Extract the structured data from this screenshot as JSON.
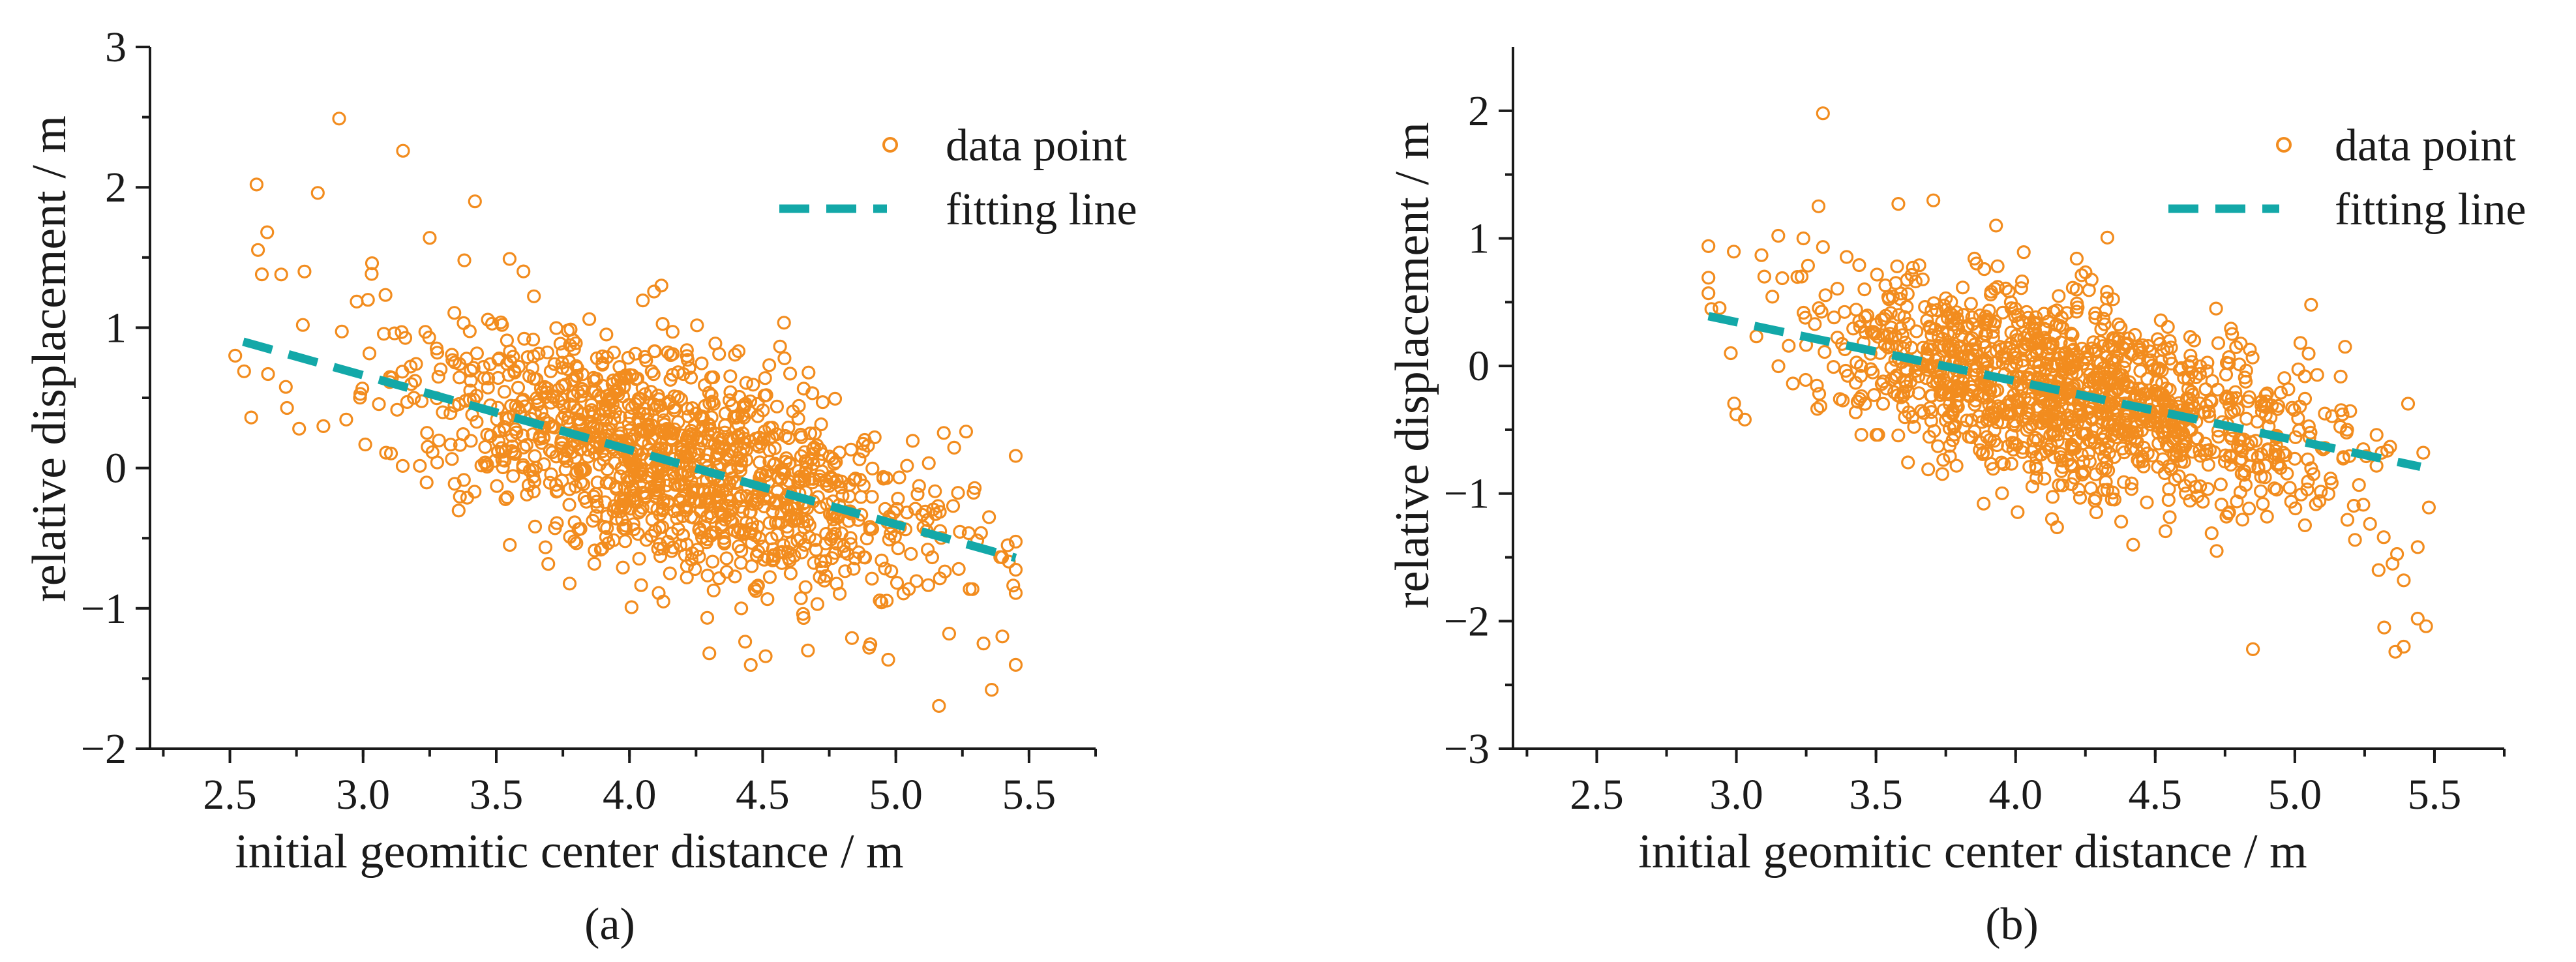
{
  "chart_data": [
    {
      "type": "scatter",
      "panel_label": "a",
      "xlabel": "initial geomitic center distance / m",
      "ylabel": "relative displacement / m",
      "xlim": [
        2.2,
        5.75
      ],
      "ylim": [
        -2,
        3
      ],
      "x_ticks": [
        2.5,
        3.0,
        3.5,
        4.0,
        4.5,
        5.0,
        5.5
      ],
      "x_tick_labels": [
        "2.5",
        "3.0",
        "3.5",
        "4.0",
        "4.5",
        "5.0",
        "5.5"
      ],
      "y_ticks": [
        -2,
        -1,
        0,
        1,
        2,
        3
      ],
      "y_tick_labels": [
        "−2",
        "−1",
        "0",
        "1",
        "2",
        "3"
      ],
      "legend": {
        "position": "top-right",
        "entries": [
          "data point",
          "fitting line"
        ]
      },
      "series": [
        {
          "name": "data point",
          "kind": "scatter",
          "generated_cloud": {
            "count": 1300,
            "seed": 12345,
            "x_range": [
              2.55,
              5.45
            ],
            "x_center": 4.15,
            "x_spread": 0.5,
            "slope": -0.53,
            "intercept": 2.25,
            "noise_sd": 0.4
          },
          "points": [
            {
              "x": 2.6,
              "y": 2.02
            },
            {
              "x": 2.91,
              "y": 2.49
            },
            {
              "x": 3.15,
              "y": 2.26
            },
            {
              "x": 2.83,
              "y": 1.96
            },
            {
              "x": 2.64,
              "y": 1.68
            },
            {
              "x": 3.42,
              "y": 1.9
            },
            {
              "x": 3.25,
              "y": 1.64
            },
            {
              "x": 3.38,
              "y": 1.48
            },
            {
              "x": 3.55,
              "y": 1.49
            },
            {
              "x": 2.62,
              "y": 1.38
            },
            {
              "x": 2.78,
              "y": 1.4
            },
            {
              "x": 2.52,
              "y": 0.8
            },
            {
              "x": 2.58,
              "y": 0.36
            },
            {
              "x": 2.76,
              "y": 0.28
            },
            {
              "x": 4.12,
              "y": 1.3
            },
            {
              "x": 5.36,
              "y": -1.58
            },
            {
              "x": 5.4,
              "y": -1.2
            },
            {
              "x": 5.35,
              "y": -0.35
            },
            {
              "x": 4.3,
              "y": -1.32
            },
            {
              "x": 4.67,
              "y": -1.3
            },
            {
              "x": 5.2,
              "y": -1.18
            },
            {
              "x": 4.9,
              "y": -1.28
            },
            {
              "x": 5.42,
              "y": -0.55
            },
            {
              "x": 5.18,
              "y": 0.25
            }
          ]
        },
        {
          "name": "fitting line",
          "kind": "line",
          "x": [
            2.55,
            5.45
          ],
          "y": [
            0.9,
            -0.64
          ]
        }
      ],
      "colors": {
        "points": "#f28c1e",
        "fit": "#13a8a8",
        "axes": "#1a1a1a"
      }
    },
    {
      "type": "scatter",
      "panel_label": "b",
      "xlabel": "initial geomitic center distance / m",
      "ylabel": "relative displacement / m",
      "xlim": [
        2.2,
        5.75
      ],
      "ylim": [
        -3,
        2.5
      ],
      "x_ticks": [
        2.5,
        3.0,
        3.5,
        4.0,
        4.5,
        5.0,
        5.5
      ],
      "x_tick_labels": [
        "2.5",
        "3.0",
        "3.5",
        "4.0",
        "4.5",
        "5.0",
        "5.5"
      ],
      "y_ticks": [
        -3,
        -2,
        -1,
        0,
        1,
        2
      ],
      "y_tick_labels": [
        "−3",
        "−2",
        "−1",
        "0",
        "1",
        "2"
      ],
      "legend": {
        "position": "top-right",
        "entries": [
          "data point",
          "fitting line"
        ]
      },
      "series": [
        {
          "name": "data point",
          "kind": "scatter",
          "generated_cloud": {
            "count": 1300,
            "seed": 6789,
            "x_range": [
              2.9,
              5.48
            ],
            "x_center": 4.2,
            "x_spread": 0.45,
            "slope": -0.46,
            "intercept": 1.72,
            "noise_sd": 0.38
          },
          "points": [
            {
              "x": 3.31,
              "y": 1.98
            },
            {
              "x": 3.58,
              "y": 1.27
            },
            {
              "x": 3.93,
              "y": 1.1
            },
            {
              "x": 3.15,
              "y": 1.02
            },
            {
              "x": 3.24,
              "y": 1.0
            },
            {
              "x": 3.1,
              "y": 0.7
            },
            {
              "x": 2.9,
              "y": 0.57
            },
            {
              "x": 2.98,
              "y": 0.1
            },
            {
              "x": 3.0,
              "y": -0.38
            },
            {
              "x": 3.03,
              "y": -0.42
            },
            {
              "x": 4.85,
              "y": -2.22
            },
            {
              "x": 5.32,
              "y": -2.05
            },
            {
              "x": 5.36,
              "y": -2.24
            },
            {
              "x": 5.39,
              "y": -2.2
            },
            {
              "x": 5.47,
              "y": -2.04
            },
            {
              "x": 5.44,
              "y": -1.98
            },
            {
              "x": 5.35,
              "y": -1.55
            },
            {
              "x": 5.39,
              "y": -1.68
            },
            {
              "x": 5.44,
              "y": -1.42
            },
            {
              "x": 5.3,
              "y": -1.6
            },
            {
              "x": 5.46,
              "y": -0.68
            },
            {
              "x": 5.18,
              "y": 0.15
            },
            {
              "x": 5.02,
              "y": 0.18
            },
            {
              "x": 4.72,
              "y": -1.45
            }
          ]
        },
        {
          "name": "fitting line",
          "kind": "line",
          "x": [
            2.9,
            5.45
          ],
          "y": [
            0.39,
            -0.79
          ]
        }
      ],
      "colors": {
        "points": "#f28c1e",
        "fit": "#13a8a8",
        "axes": "#1a1a1a"
      }
    }
  ],
  "captions": {
    "a": "(a)",
    "b": "(b)"
  }
}
